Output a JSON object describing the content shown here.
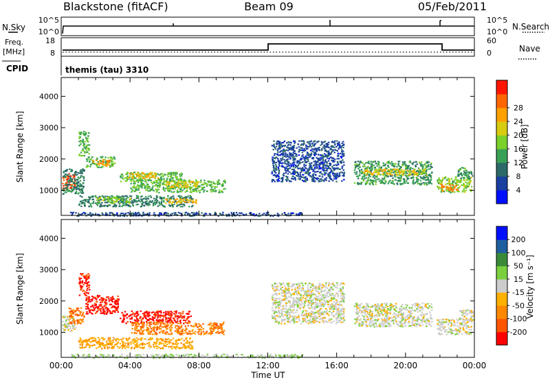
{
  "header": {
    "station": "Blackstone (fitACF)",
    "beam": "Beam 09",
    "date": "05/Feb/2011"
  },
  "strips": {
    "nsky_label": "N.Sky",
    "nsky_ticks": [
      "10^5",
      "10^0"
    ],
    "nsearch_label": "N.Search",
    "nsearch_ticks": [
      "10^5",
      "10^0"
    ],
    "freq_label_line1": "Freq.",
    "freq_label_line2": "[MHz]",
    "freq_ticks": [
      "18",
      "8"
    ],
    "nave_label": "Nave",
    "nave_ticks": [
      "60",
      "0"
    ],
    "cpid_label": "CPID",
    "cpid_text": "themis (tau) 3310"
  },
  "chart_data": [
    {
      "type": "heatmap",
      "panel": "power",
      "ylabel": "Slant Range [km]",
      "ylim": [
        200,
        4600
      ],
      "yticks": [
        "1000",
        "2000",
        "3000",
        "4000"
      ],
      "xlim": [
        0,
        24
      ],
      "colorbar": {
        "label": "Power [dB]",
        "ticks": [
          "4",
          "8",
          "12",
          "16",
          "20",
          "24",
          "28"
        ],
        "range": [
          0,
          32
        ],
        "colors": [
          "#0010ff",
          "#1a3fa0",
          "#2b6a68",
          "#3aa055",
          "#7bd02a",
          "#d8cc10",
          "#ffa000",
          "#ff6600",
          "#ff1500"
        ]
      },
      "regions": [
        {
          "t0": 0.05,
          "t1": 0.8,
          "r0": 1050,
          "r1": 1550,
          "level": 28
        },
        {
          "t0": 0.05,
          "t1": 1.3,
          "r0": 900,
          "r1": 1700,
          "level": 10
        },
        {
          "t0": 1.0,
          "t1": 1.6,
          "r0": 2100,
          "r1": 2900,
          "level": 14
        },
        {
          "t0": 1.4,
          "t1": 3.1,
          "r0": 1750,
          "r1": 2100,
          "level": 14
        },
        {
          "t0": 1.8,
          "t1": 2.8,
          "r0": 1800,
          "r1": 2000,
          "level": 24
        },
        {
          "t0": 3.4,
          "t1": 7.0,
          "r0": 1300,
          "r1": 1600,
          "level": 14
        },
        {
          "t0": 3.8,
          "t1": 5.6,
          "r0": 1400,
          "r1": 1600,
          "level": 22
        },
        {
          "t0": 4.0,
          "t1": 9.5,
          "r0": 950,
          "r1": 1350,
          "level": 14
        },
        {
          "t0": 6.0,
          "t1": 8.0,
          "r0": 1100,
          "r1": 1300,
          "level": 20
        },
        {
          "t0": 1.0,
          "t1": 7.6,
          "r0": 500,
          "r1": 850,
          "level": 10
        },
        {
          "t0": 6.0,
          "t1": 7.8,
          "r0": 600,
          "r1": 750,
          "level": 22
        },
        {
          "t0": 2.0,
          "t1": 4.0,
          "r0": 600,
          "r1": 800,
          "level": 16
        },
        {
          "t0": 0.5,
          "t1": 14.0,
          "r0": 200,
          "r1": 320,
          "level": 6
        },
        {
          "t0": 12.2,
          "t1": 16.4,
          "r0": 1300,
          "r1": 2600,
          "level": 6
        },
        {
          "t0": 17.0,
          "t1": 21.5,
          "r0": 1200,
          "r1": 1950,
          "level": 12
        },
        {
          "t0": 17.5,
          "t1": 21.2,
          "r0": 1500,
          "r1": 1700,
          "level": 20
        },
        {
          "t0": 21.8,
          "t1": 23.8,
          "r0": 950,
          "r1": 1450,
          "level": 16
        },
        {
          "t0": 22.0,
          "t1": 23.0,
          "r0": 1000,
          "r1": 1200,
          "level": 26
        },
        {
          "t0": 23.0,
          "t1": 23.9,
          "r0": 1400,
          "r1": 1750,
          "level": 12
        }
      ]
    },
    {
      "type": "heatmap",
      "panel": "velocity",
      "ylabel": "Slant Range [km]",
      "ylim": [
        200,
        4600
      ],
      "yticks": [
        "1000",
        "2000",
        "3000",
        "4000"
      ],
      "xlabel": "Time UT",
      "xlim": [
        0,
        24
      ],
      "xticks": [
        "00:00",
        "04:00",
        "08:00",
        "12:00",
        "16:00",
        "20:00",
        "00:00"
      ],
      "colorbar": {
        "label": "Velocity [m s⁻¹]",
        "ticks": [
          "200",
          "100",
          "50",
          "15",
          "-15",
          "-50",
          "-100",
          "-200"
        ],
        "range": [
          -250,
          250
        ],
        "colors": [
          "#ff0000",
          "#ff5500",
          "#ff8800",
          "#ffb000",
          "#cccccc",
          "#7bd040",
          "#3a8a3a",
          "#1f5fa0",
          "#0010ff"
        ]
      },
      "regions": [
        {
          "t0": 0.05,
          "t1": 0.8,
          "r0": 1050,
          "r1": 1550,
          "level": 0
        },
        {
          "t0": 0.4,
          "t1": 1.3,
          "r0": 1300,
          "r1": 1800,
          "level": -120
        },
        {
          "t0": 1.0,
          "t1": 1.6,
          "r0": 2200,
          "r1": 2900,
          "level": -200
        },
        {
          "t0": 1.4,
          "t1": 3.3,
          "r0": 1600,
          "r1": 2200,
          "level": -220
        },
        {
          "t0": 3.4,
          "t1": 7.5,
          "r0": 1300,
          "r1": 1700,
          "level": -220
        },
        {
          "t0": 4.0,
          "t1": 9.5,
          "r0": 950,
          "r1": 1350,
          "level": -120
        },
        {
          "t0": 1.0,
          "t1": 7.6,
          "r0": 500,
          "r1": 850,
          "level": -70
        },
        {
          "t0": 0.5,
          "t1": 14.0,
          "r0": 200,
          "r1": 320,
          "level": 20
        },
        {
          "t0": 12.2,
          "t1": 16.4,
          "r0": 1300,
          "r1": 2600,
          "level": 0
        },
        {
          "t0": 17.0,
          "t1": 21.5,
          "r0": 1200,
          "r1": 1950,
          "level": 0
        },
        {
          "t0": 21.8,
          "t1": 23.8,
          "r0": 950,
          "r1": 1450,
          "level": 0
        },
        {
          "t0": 23.0,
          "t1": 23.9,
          "r0": 1400,
          "r1": 1750,
          "level": 0
        }
      ]
    }
  ]
}
